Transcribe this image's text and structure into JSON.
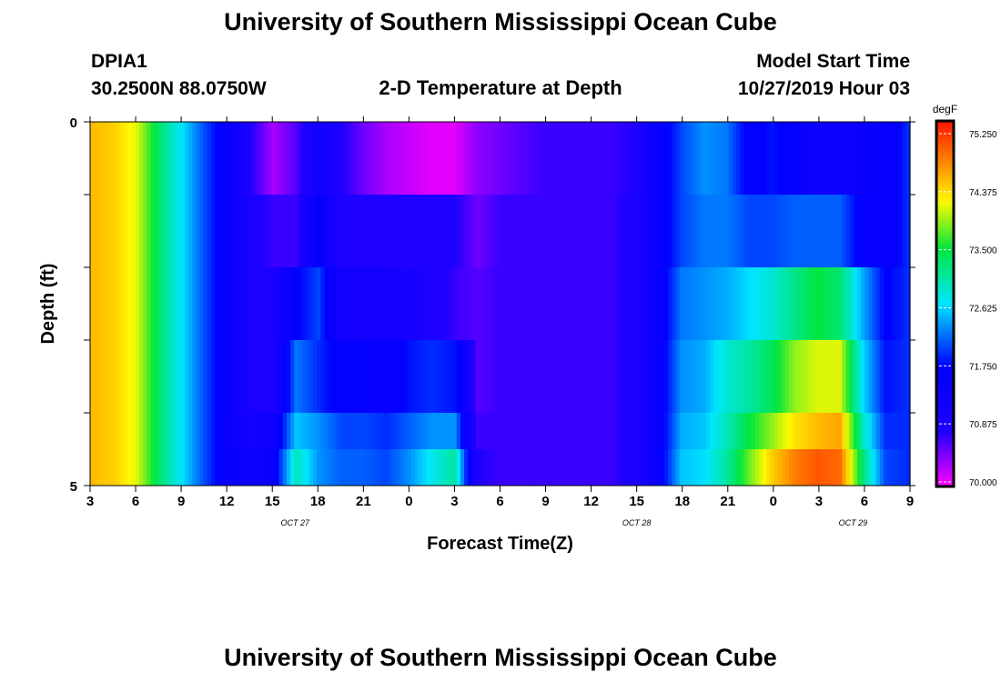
{
  "header": {
    "title": "University of Southern Mississippi Ocean Cube",
    "station_id": "DPIA1",
    "station_coords": "30.2500N 88.0750W",
    "subtitle": "2-D Temperature at Depth",
    "start_label": "Model Start Time",
    "start_value": "10/27/2019 Hour 03"
  },
  "footer": {
    "title": "University of Southern Mississippi Ocean Cube"
  },
  "chart_data": {
    "type": "heatmap",
    "title": "2-D Temperature at Depth",
    "xlabel": "Forecast Time(Z)",
    "ylabel": "Depth (ft)",
    "x_hours_from_start": [
      0,
      54
    ],
    "y_range": [
      0,
      5
    ],
    "y_ticks": [
      "0",
      "5"
    ],
    "x_tick_labels": [
      "3",
      "6",
      "9",
      "12",
      "15",
      "18",
      "21",
      "0",
      "3",
      "6",
      "9",
      "12",
      "15",
      "18",
      "21",
      "0",
      "3",
      "6",
      "9"
    ],
    "date_labels": [
      {
        "text": "OCT 27",
        "tick_index": 4.5
      },
      {
        "text": "OCT 28",
        "tick_index": 12
      },
      {
        "text": "OCT 29",
        "tick_index": 16.75
      }
    ],
    "depth_rows": [
      "0-1 ft",
      "1-2 ft",
      "2-3 ft",
      "3-4 ft",
      "4-4.5 ft",
      "4.5-5 ft"
    ],
    "z_values_degF": [
      [
        74.4,
        74.3,
        74.0,
        73.2,
        72.6,
        72.0,
        71.5,
        70.8,
        70.3,
        70.6,
        71.2,
        70.8,
        70.5,
        70.3,
        70.2,
        70.1,
        70.1,
        70.4,
        70.5,
        70.6,
        70.7,
        70.7,
        70.7,
        70.7,
        70.8,
        71.5,
        72.0,
        72.3,
        72.2,
        71.6,
        71.8,
        71.6,
        71.3,
        71.3,
        71.4,
        71.5,
        71.9
      ],
      [
        74.4,
        74.3,
        74.0,
        73.2,
        72.6,
        72.0,
        71.5,
        70.9,
        70.7,
        70.7,
        71.6,
        70.8,
        70.8,
        70.8,
        70.8,
        70.8,
        70.8,
        70.5,
        70.7,
        70.7,
        70.7,
        70.7,
        70.7,
        70.7,
        70.9,
        71.5,
        72.0,
        72.2,
        72.2,
        72.0,
        72.0,
        72.1,
        72.1,
        72.1,
        71.6,
        71.5,
        71.9
      ],
      [
        74.4,
        74.3,
        74.0,
        73.2,
        72.6,
        72.0,
        71.5,
        70.9,
        70.9,
        71.7,
        72.0,
        71.1,
        71.1,
        71.1,
        71.0,
        70.9,
        70.7,
        70.6,
        70.7,
        70.7,
        70.7,
        70.7,
        70.7,
        70.7,
        70.9,
        71.5,
        72.2,
        72.3,
        72.4,
        72.6,
        72.8,
        73.1,
        73.4,
        73.2,
        72.4,
        71.7,
        71.9
      ],
      [
        74.4,
        74.3,
        74.0,
        73.2,
        72.6,
        72.0,
        71.5,
        70.9,
        70.9,
        72.2,
        71.9,
        71.6,
        71.6,
        71.5,
        71.8,
        71.9,
        71.8,
        70.6,
        70.7,
        70.7,
        70.7,
        70.7,
        70.7,
        70.7,
        70.9,
        71.5,
        72.3,
        72.4,
        72.8,
        73.0,
        73.3,
        73.8,
        74.0,
        74.0,
        72.6,
        71.8,
        71.9
      ],
      [
        74.4,
        74.3,
        74.0,
        73.2,
        72.6,
        72.0,
        71.5,
        71.1,
        71.3,
        72.5,
        72.3,
        72.0,
        72.0,
        71.9,
        72.1,
        72.3,
        72.3,
        70.7,
        70.7,
        70.7,
        70.7,
        70.7,
        70.7,
        70.7,
        70.9,
        71.5,
        72.4,
        72.5,
        72.9,
        73.4,
        73.8,
        74.2,
        74.4,
        74.5,
        72.9,
        71.9,
        71.9
      ],
      [
        74.4,
        74.3,
        74.0,
        73.2,
        72.6,
        72.0,
        71.5,
        71.3,
        71.5,
        72.9,
        72.3,
        72.1,
        72.1,
        72.0,
        72.3,
        72.7,
        73.0,
        70.8,
        70.7,
        70.7,
        70.7,
        70.7,
        70.7,
        70.7,
        70.9,
        71.5,
        72.5,
        72.6,
        73.0,
        73.7,
        74.3,
        74.7,
        74.9,
        74.8,
        73.2,
        72.0,
        71.9
      ]
    ],
    "colorbar": {
      "units": "degF",
      "range": [
        70.0,
        75.25
      ],
      "tick_labels": [
        "75.250",
        "74.375",
        "73.500",
        "72.625",
        "71.750",
        "70.875",
        "70.000"
      ]
    }
  }
}
